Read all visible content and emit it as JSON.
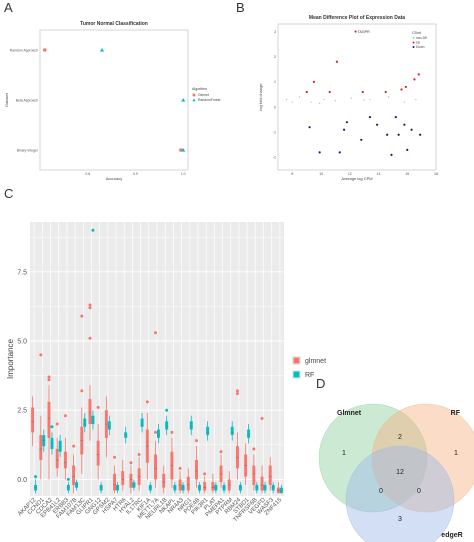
{
  "panels": {
    "a": "A",
    "b": "B",
    "c": "C",
    "d": "D"
  },
  "chart_data": [
    {
      "type": "scatter",
      "panel": "A",
      "title": "Tumor Normal Classification",
      "xlabel": "Accuracy",
      "ylabel": "Dataset",
      "xticks": [
        "0.8",
        "0.9",
        "1.0"
      ],
      "xlim": [
        0.7,
        1.01
      ],
      "categories": [
        "Random Approach",
        "Beta Approach",
        "Binary Integer"
      ],
      "legend_title": "Algorithm",
      "legend_position": "right",
      "series": [
        {
          "name": "Glmnet",
          "color": "#f8766d",
          "marker": "circle",
          "points": [
            {
              "x": 0.71,
              "y": "Random Approach"
            },
            {
              "x": 0.995,
              "y": "Binary Integer"
            }
          ]
        },
        {
          "name": "RandomForest",
          "color": "#00bfc4",
          "marker": "triangle",
          "points": [
            {
              "x": 0.83,
              "y": "Random Approach"
            },
            {
              "x": 1.0,
              "y": "Beta Approach"
            },
            {
              "x": 1.0,
              "y": "Binary Integer"
            }
          ]
        }
      ]
    },
    {
      "type": "scatter",
      "panel": "B",
      "title": "Mean Difference Plot of Expression Data",
      "xlabel": "Average log CPM",
      "ylabel": "log fold change",
      "xticks": [
        "8",
        "10",
        "12",
        "14",
        "16",
        "18"
      ],
      "yticks": [
        "-2",
        "-1",
        "0",
        "1",
        "2",
        "3"
      ],
      "xlim": [
        7,
        18
      ],
      "ylim": [
        -2.5,
        3.3
      ],
      "annotations": [
        {
          "text": "TAGPR",
          "x": 12.4,
          "y": 3.0
        }
      ],
      "legend_title": "CDmt",
      "legend_position": "top-right",
      "legend": [
        {
          "name": "non-DE",
          "color": "#bbbbbb"
        },
        {
          "name": "Up",
          "color": "#e41a1c"
        },
        {
          "name": "Down",
          "color": "#1a1a7a"
        }
      ],
      "series": [
        {
          "name": "non-DE",
          "color": "#d9b3b3",
          "points": [
            [
              7.6,
              0.3
            ],
            [
              8.5,
              0.4
            ],
            [
              9.3,
              0.2
            ],
            [
              10.2,
              0.3
            ],
            [
              11.0,
              0.25
            ],
            [
              12.1,
              0.35
            ],
            [
              13.4,
              0.3
            ],
            [
              14.7,
              0.4
            ],
            [
              15.8,
              0.2
            ],
            [
              8.0,
              0.2
            ],
            [
              9.9,
              0.15
            ],
            [
              13.0,
              0.28
            ],
            [
              16.6,
              0.3
            ]
          ]
        },
        {
          "name": "Up",
          "color": "#e41a1c",
          "points": [
            [
              12.4,
              3.0
            ],
            [
              11.1,
              1.8
            ],
            [
              9.5,
              1.0
            ],
            [
              12.9,
              0.6
            ],
            [
              14.5,
              0.6
            ],
            [
              15.6,
              0.7
            ],
            [
              16.5,
              1.1
            ],
            [
              16.8,
              1.3
            ],
            [
              15.9,
              0.8
            ],
            [
              10.6,
              0.6
            ],
            [
              9.0,
              0.6
            ]
          ]
        },
        {
          "name": "Down",
          "color": "#1a1a7a",
          "points": [
            [
              9.2,
              -0.8
            ],
            [
              9.9,
              -1.8
            ],
            [
              11.6,
              -0.9
            ],
            [
              11.8,
              -0.6
            ],
            [
              12.8,
              -1.3
            ],
            [
              13.9,
              -0.7
            ],
            [
              14.6,
              -1.1
            ],
            [
              14.9,
              -1.9
            ],
            [
              15.2,
              -0.4
            ],
            [
              15.4,
              -1.1
            ],
            [
              15.8,
              -0.7
            ],
            [
              16.3,
              -0.9
            ],
            [
              16.0,
              -1.7
            ],
            [
              16.9,
              -1.1
            ],
            [
              11.3,
              -1.8
            ],
            [
              13.4,
              -0.4
            ]
          ]
        }
      ]
    },
    {
      "type": "box",
      "panel": "C",
      "xlabel": "",
      "ylabel": "Importance",
      "yticks": [
        "0.0",
        "2.5",
        "5.0",
        "7.5"
      ],
      "ylim": [
        -0.6,
        9.3
      ],
      "legend_position": "right",
      "series_names": [
        "glmnet",
        "RF"
      ],
      "series_colors": [
        "#f8766d",
        "#00bfc4"
      ],
      "categories": [
        "AKAP12",
        "CCND1",
        "CDCA2",
        "EPB41L2",
        "ERBB3",
        "FAM107B",
        "FAM13C",
        "GLIPR1",
        "GNG12",
        "GPSM2",
        "HSPA7",
        "HTR6",
        "HYAL2",
        "IL17RC",
        "KIF1A",
        "METTL7A",
        "NEURL1B",
        "NKAPL",
        "NR4A3",
        "NRG1",
        "PDE4B",
        "PIK3R1",
        "PLAT",
        "PMEPA1",
        "PTPRM",
        "RBM24",
        "STBD1",
        "TNFRSF6B",
        "VEGFD",
        "WASF3",
        "ZNF415"
      ],
      "boxes": {
        "glmnet": [
          [
            1.2,
            1.7,
            2.1,
            2.6,
            3.0,
            []
          ],
          [
            0.0,
            0.7,
            1.1,
            1.6,
            2.3,
            [
              4.5
            ]
          ],
          [
            0.0,
            1.5,
            2.2,
            2.8,
            3.4,
            [
              3.6,
              3.7
            ]
          ],
          [
            0.1,
            0.4,
            0.7,
            1.1,
            1.5,
            [
              2.0
            ]
          ],
          [
            0.0,
            0.4,
            0.6,
            1.0,
            1.5,
            [
              2.3
            ]
          ],
          [
            -0.5,
            -0.2,
            0.1,
            0.5,
            0.9,
            [
              1.2
            ]
          ],
          [
            0.2,
            0.9,
            1.4,
            1.9,
            2.6,
            [
              3.2,
              5.9
            ]
          ],
          [
            1.4,
            2.0,
            2.4,
            2.9,
            3.4,
            [
              6.2,
              6.3,
              5.1
            ]
          ],
          [
            0.0,
            0.5,
            0.9,
            1.4,
            2.0,
            [
              2.6
            ]
          ],
          [
            0.8,
            1.5,
            2.0,
            2.5,
            3.0,
            []
          ],
          [
            -0.5,
            -0.4,
            -0.2,
            0.2,
            0.5,
            [
              0.8
            ]
          ],
          [
            -0.4,
            -0.2,
            0.0,
            0.3,
            0.7,
            []
          ],
          [
            -0.5,
            -0.3,
            0.0,
            0.2,
            0.5,
            [
              0.6
            ]
          ],
          [
            -0.4,
            -0.2,
            0.1,
            0.4,
            0.8,
            [
              0.9
            ]
          ],
          [
            0.0,
            0.6,
            1.2,
            1.8,
            2.4,
            [
              2.8
            ]
          ],
          [
            -0.3,
            0.0,
            0.4,
            0.9,
            1.4,
            [
              1.7,
              5.3
            ]
          ],
          [
            -0.5,
            -0.3,
            -0.1,
            0.2,
            0.5,
            []
          ],
          [
            -0.3,
            0.0,
            0.5,
            1.0,
            1.5,
            [
              1.7
            ]
          ],
          [
            -0.5,
            -0.4,
            -0.2,
            0.0,
            0.3,
            [
              0.4
            ]
          ],
          [
            -0.5,
            -0.4,
            -0.2,
            0.1,
            0.4,
            []
          ],
          [
            -0.3,
            0.0,
            0.3,
            0.7,
            1.2,
            [
              1.4
            ]
          ],
          [
            -0.5,
            -0.4,
            -0.3,
            -0.1,
            0.1,
            [
              0.2
            ]
          ],
          [
            -0.5,
            -0.4,
            -0.3,
            -0.1,
            0.2,
            []
          ],
          [
            -0.3,
            -0.1,
            0.2,
            0.5,
            0.9,
            [
              1.0
            ]
          ],
          [
            -0.5,
            -0.4,
            -0.2,
            0.0,
            0.3,
            []
          ],
          [
            0.0,
            0.4,
            0.8,
            1.2,
            1.7,
            [
              3.1,
              3.2
            ]
          ],
          [
            -0.2,
            0.1,
            0.5,
            0.9,
            1.3,
            []
          ],
          [
            -0.4,
            -0.2,
            0.2,
            0.5,
            0.9,
            [
              1.1
            ]
          ],
          [
            -0.5,
            -0.4,
            -0.2,
            0.1,
            0.5,
            [
              2.2
            ]
          ],
          [
            -0.4,
            -0.2,
            0.1,
            0.5,
            0.8,
            []
          ],
          [
            -0.5,
            -0.5,
            -0.4,
            -0.3,
            -0.1,
            []
          ]
        ],
        "RF": [
          [
            -0.5,
            -0.4,
            -0.3,
            -0.2,
            0.0,
            [
              0.1
            ]
          ],
          [
            1.0,
            1.2,
            1.4,
            1.6,
            1.8,
            []
          ],
          [
            0.9,
            1.1,
            1.3,
            1.5,
            1.7,
            [
              1.9
            ]
          ],
          [
            0.8,
            1.0,
            1.2,
            1.4,
            1.6,
            []
          ],
          [
            -0.5,
            -0.4,
            -0.3,
            -0.2,
            -0.1,
            [
              0.0
            ]
          ],
          [
            -0.4,
            -0.3,
            -0.2,
            -0.1,
            0.0,
            []
          ],
          [
            1.7,
            1.9,
            2.0,
            2.2,
            2.4,
            []
          ],
          [
            1.8,
            2.0,
            2.1,
            2.3,
            2.5,
            [
              9.0
            ]
          ],
          [
            -0.5,
            -0.4,
            -0.3,
            -0.2,
            -0.1,
            []
          ],
          [
            1.6,
            1.8,
            1.9,
            2.1,
            2.3,
            []
          ],
          [
            -0.5,
            -0.4,
            -0.3,
            -0.2,
            -0.1,
            []
          ],
          [
            1.3,
            1.5,
            1.6,
            1.7,
            1.9,
            []
          ],
          [
            -0.4,
            -0.3,
            -0.2,
            -0.1,
            0.0,
            []
          ],
          [
            1.7,
            1.9,
            2.0,
            2.2,
            2.4,
            []
          ],
          [
            -0.5,
            -0.4,
            -0.3,
            -0.2,
            -0.1,
            []
          ],
          [
            1.3,
            1.5,
            1.6,
            1.8,
            2.0,
            []
          ],
          [
            1.6,
            1.8,
            1.9,
            2.1,
            2.3,
            [
              2.5
            ]
          ],
          [
            -0.5,
            -0.4,
            -0.3,
            -0.2,
            -0.1,
            []
          ],
          [
            -0.5,
            -0.4,
            -0.3,
            -0.2,
            -0.1,
            []
          ],
          [
            1.6,
            1.8,
            1.9,
            2.1,
            2.3,
            []
          ],
          [
            -0.5,
            -0.4,
            -0.3,
            -0.2,
            -0.1,
            []
          ],
          [
            1.4,
            1.6,
            1.7,
            1.9,
            2.1,
            []
          ],
          [
            -0.5,
            -0.4,
            -0.3,
            -0.2,
            -0.1,
            []
          ],
          [
            -0.5,
            -0.4,
            -0.3,
            -0.2,
            -0.1,
            []
          ],
          [
            1.4,
            1.6,
            1.7,
            1.9,
            2.1,
            []
          ],
          [
            -0.5,
            -0.4,
            -0.3,
            -0.2,
            -0.1,
            []
          ],
          [
            1.3,
            1.5,
            1.6,
            1.8,
            2.0,
            []
          ],
          [
            -0.5,
            -0.4,
            -0.3,
            -0.2,
            -0.1,
            []
          ],
          [
            -0.5,
            -0.4,
            -0.3,
            -0.2,
            -0.1,
            []
          ],
          [
            -0.5,
            -0.4,
            -0.3,
            -0.2,
            -0.1,
            []
          ],
          [
            -0.5,
            -0.5,
            -0.4,
            -0.3,
            -0.2,
            []
          ]
        ]
      }
    },
    {
      "type": "venn",
      "panel": "D",
      "sets": [
        {
          "name": "Glmnet",
          "color": "#8fd19e"
        },
        {
          "name": "RF",
          "color": "#f4b183"
        },
        {
          "name": "edgeR",
          "color": "#9db7e8"
        }
      ],
      "regions": [
        {
          "sets": [
            "Glmnet"
          ],
          "value": 1
        },
        {
          "sets": [
            "RF"
          ],
          "value": 1
        },
        {
          "sets": [
            "edgeR"
          ],
          "value": 3
        },
        {
          "sets": [
            "Glmnet",
            "RF"
          ],
          "value": 2
        },
        {
          "sets": [
            "Glmnet",
            "edgeR"
          ],
          "value": 0
        },
        {
          "sets": [
            "RF",
            "edgeR"
          ],
          "value": 0
        },
        {
          "sets": [
            "Glmnet",
            "RF",
            "edgeR"
          ],
          "value": 12
        }
      ]
    }
  ]
}
